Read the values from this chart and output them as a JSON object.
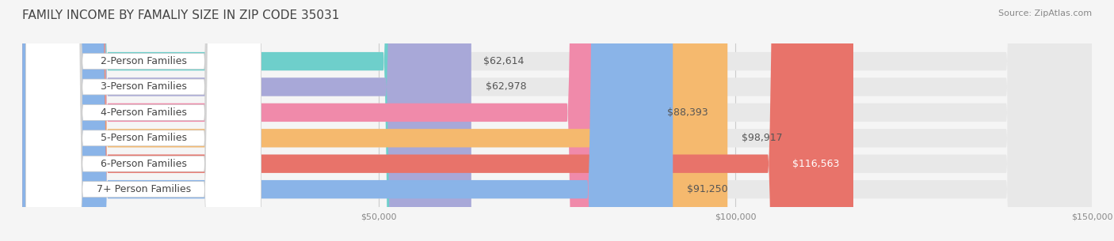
{
  "title": "FAMILY INCOME BY FAMALIY SIZE IN ZIP CODE 35031",
  "source": "Source: ZipAtlas.com",
  "categories": [
    "2-Person Families",
    "3-Person Families",
    "4-Person Families",
    "5-Person Families",
    "6-Person Families",
    "7+ Person Families"
  ],
  "values": [
    62614,
    62978,
    88393,
    98917,
    116563,
    91250
  ],
  "bar_colors": [
    "#6ecfcb",
    "#a8a8d8",
    "#f08aaa",
    "#f5b96e",
    "#e8736a",
    "#8ab4e8"
  ],
  "label_colors": [
    "#555555",
    "#555555",
    "#555555",
    "#555555",
    "#ffffff",
    "#555555"
  ],
  "value_labels": [
    "$62,614",
    "$62,978",
    "$88,393",
    "$98,917",
    "$116,563",
    "$91,250"
  ],
  "xlim": [
    0,
    150000
  ],
  "xtick_labels": [
    "$50,000",
    "$100,000",
    "$150,000"
  ],
  "bg_color": "#f5f5f5",
  "bar_bg_color": "#e8e8e8",
  "title_fontsize": 11,
  "source_fontsize": 8,
  "label_fontsize": 9,
  "value_fontsize": 9
}
